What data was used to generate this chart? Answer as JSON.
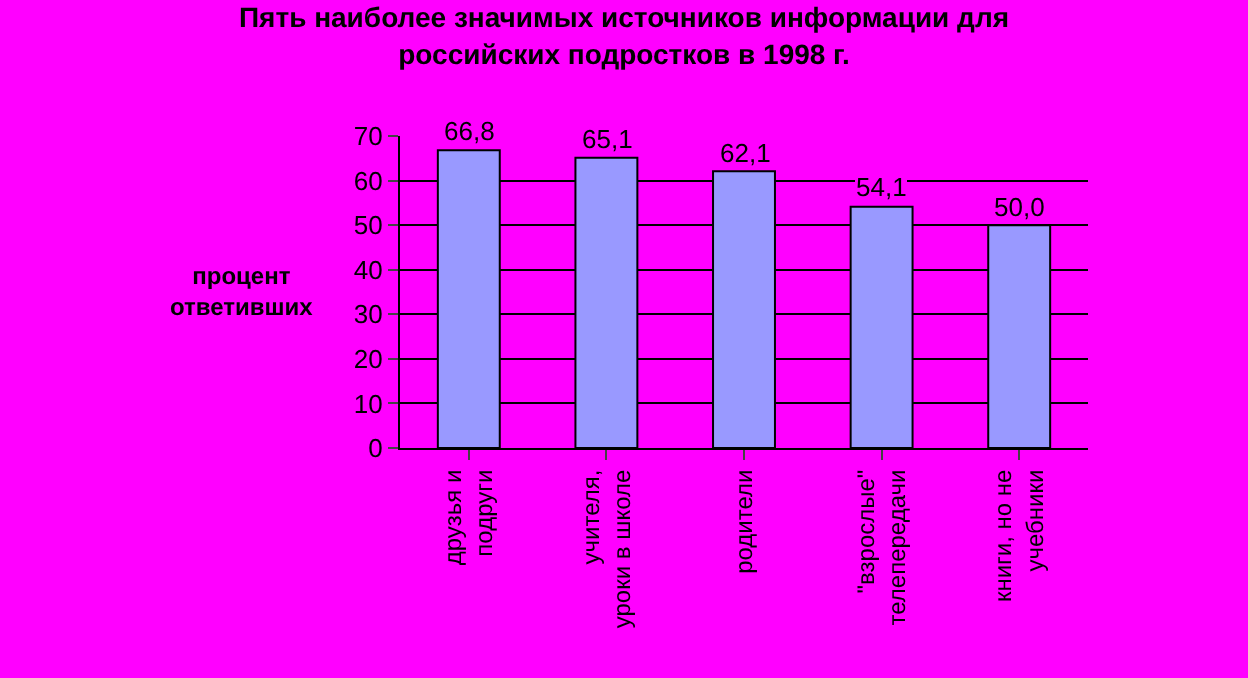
{
  "chart_data": {
    "type": "bar",
    "title": "Пять наиболее значимых источников информации для\nроссийских подростков в 1998 г.",
    "ylabel": "процент\nответивших",
    "categories": [
      "друзья и\nподруги",
      "учителя,\nуроки в школе",
      "родители",
      "\"взрослые\"\nтелепередачи",
      "книги, но не\nучебники"
    ],
    "values": [
      66.8,
      65.1,
      62.1,
      54.1,
      50.0
    ],
    "value_labels": [
      "66,8",
      "65,1",
      "62,1",
      "54,1",
      "50,0"
    ],
    "color": "#9999ff",
    "ylim": [
      0,
      70
    ],
    "yticks": [
      0,
      10,
      20,
      30,
      40,
      50,
      60,
      70
    ],
    "grid": "y",
    "legend": false
  }
}
